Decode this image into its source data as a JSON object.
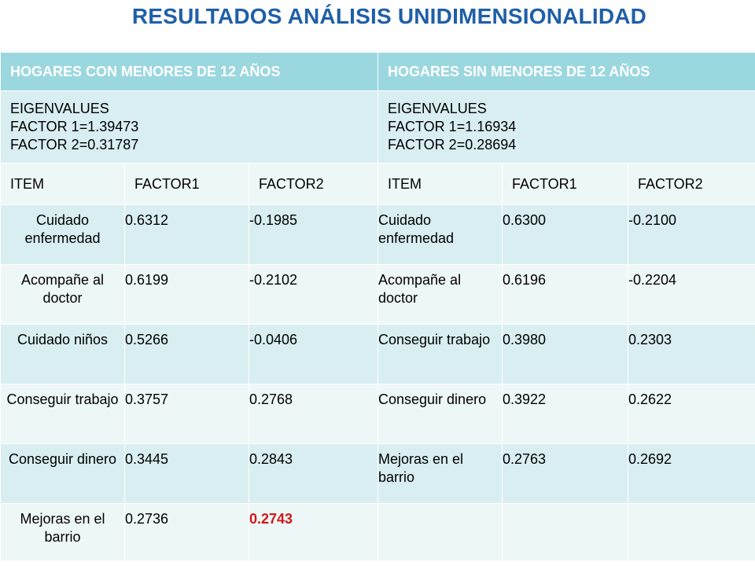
{
  "title": "RESULTADOS ANÁLISIS UNIDIMENSIONALIDAD",
  "groups": [
    {
      "header": "HOGARES CON MENORES DE 12 AÑOS",
      "eigen_label": "EIGENVALUES",
      "factor1_eigen": "FACTOR 1=1.39473",
      "factor2_eigen": "FACTOR 2=0.31787"
    },
    {
      "header": "HOGARES SIN MENORES DE 12 AÑOS",
      "eigen_label": "EIGENVALUES",
      "factor1_eigen": "FACTOR 1=1.16934",
      "factor2_eigen": "FACTOR 2=0.28694"
    }
  ],
  "columns": [
    "ITEM",
    "FACTOR1",
    "FACTOR2",
    "ITEM",
    "FACTOR1",
    "FACTOR2"
  ],
  "rows": [
    {
      "l_item": "Cuidado enfermedad",
      "l_f1": "0.6312",
      "l_f2": "-0.1985",
      "r_item": "Cuidado enfermedad",
      "r_f1": "0.6300",
      "r_f2": "-0.2100"
    },
    {
      "l_item": "Acompañe al doctor",
      "l_f1": "0.6199",
      "l_f2": "-0.2102",
      "r_item": "Acompañe al doctor",
      "r_f1": "0.6196",
      "r_f2": "-0.2204"
    },
    {
      "l_item": "Cuidado niños",
      "l_f1": "0.5266",
      "l_f2": "-0.0406",
      "r_item": "Conseguir trabajo",
      "r_f1": "0.3980",
      "r_f2": "0.2303"
    },
    {
      "l_item": "Conseguir trabajo",
      "l_f1": "0.3757",
      "l_f2": "0.2768",
      "r_item": "Conseguir dinero",
      "r_f1": "0.3922",
      "r_f2": "0.2622"
    },
    {
      "l_item": "Conseguir dinero",
      "l_f1": "0.3445",
      "l_f2": "0.2843",
      "r_item": "Mejoras en el barrio",
      "r_f1": "0.2763",
      "r_f2": "0.2692"
    },
    {
      "l_item": "Mejoras en el barrio",
      "l_f1": "0.2736",
      "l_f2": "0.2743",
      "r_item": "",
      "r_f1": "",
      "r_f2": ""
    }
  ],
  "colors": {
    "title": "#1f5fa8",
    "header_bg": "#9bd7df",
    "band_dark": "#d9eef1",
    "band_light": "#eef7f8",
    "highlight": "#d01818"
  }
}
